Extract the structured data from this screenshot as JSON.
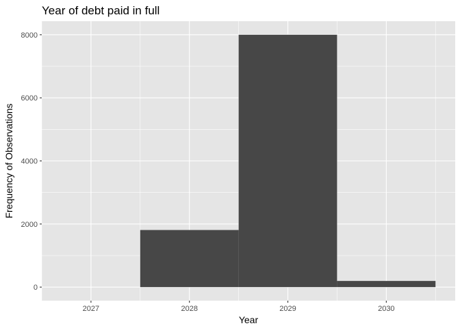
{
  "chart_data": {
    "type": "bar",
    "title": "Year of debt paid in full",
    "xlabel": "Year",
    "ylabel": "Frequency of Observations",
    "categories": [
      "2027",
      "2028",
      "2029",
      "2030"
    ],
    "values": [
      0,
      1810,
      8000,
      195
    ],
    "ylim": [
      -430,
      8430
    ],
    "yticks": [
      0,
      2000,
      4000,
      6000,
      8000
    ],
    "ytick_labels": [
      "0",
      "2000",
      "4000",
      "6000",
      "8000"
    ],
    "xlim": [
      2026.5,
      2030.7
    ],
    "bar_width": 1,
    "grid": true,
    "panel_background": "#e5e5e5",
    "grid_color": "#ffffff",
    "bar_color": "#474747"
  }
}
